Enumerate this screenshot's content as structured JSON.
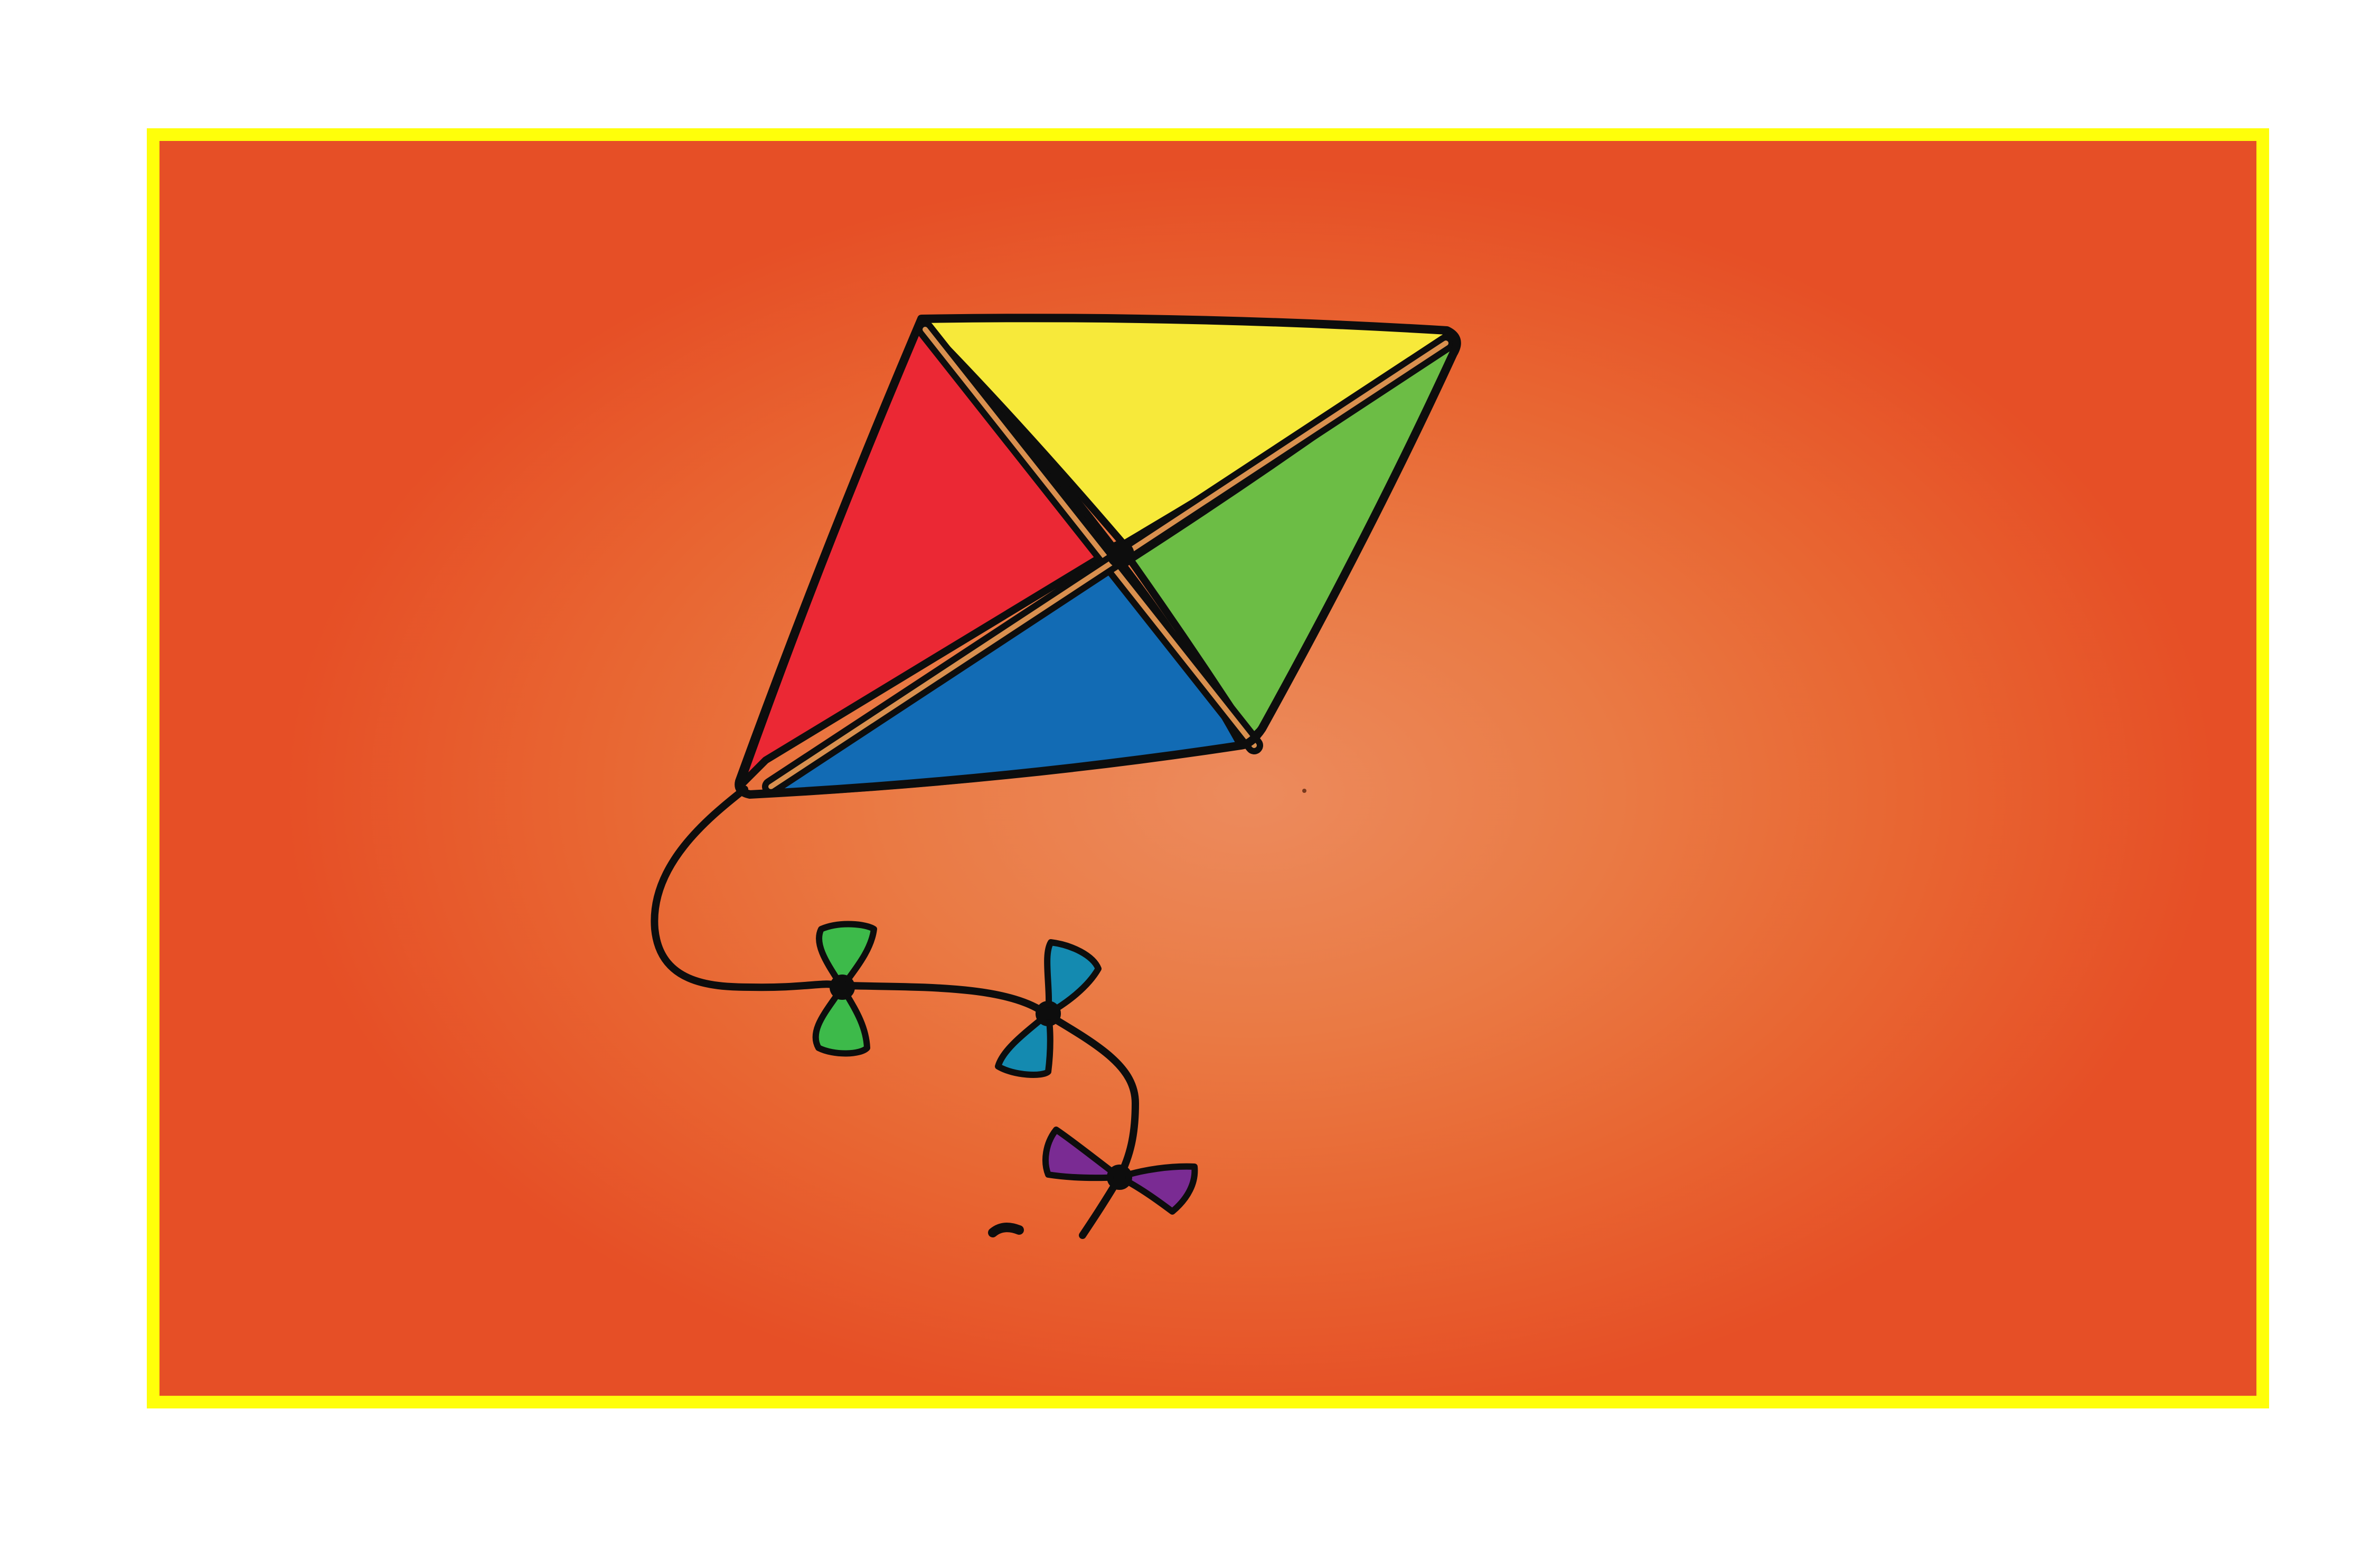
{
  "scene": {
    "subject": "kite-with-tail-bows",
    "colors": {
      "page_background": "#ffffff",
      "frame_border": "#ffff0a",
      "background_center": "#ec8b5d",
      "background_edge": "#e64f26",
      "kite_top_panel": "#f7e93a",
      "kite_left_panel": "#eb2834",
      "kite_right_panel": "#6cbd45",
      "kite_bottom_panel": "#126bb4",
      "kite_spar": "#d9904f",
      "outline": "#0d0d0d",
      "bow_1": "#3dba4a",
      "bow_2": "#148ab0",
      "bow_3": "#7a2b93"
    }
  }
}
